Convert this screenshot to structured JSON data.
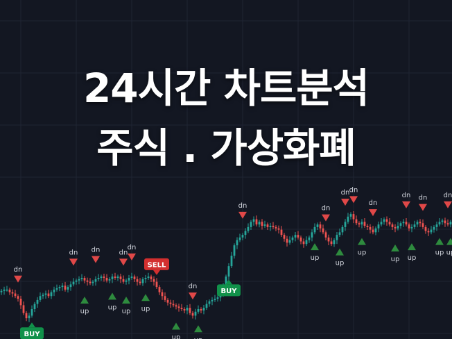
{
  "headline": {
    "line1": "24시간 차트분석",
    "line2": "주식 . 가상화폐"
  },
  "colors": {
    "background": "#131722",
    "grid": "#1f2433",
    "up_candle": "#26a69a",
    "down_candle": "#ef5350",
    "up_marker": "#2e8b3e",
    "down_marker": "#e04848",
    "buy_badge": "#11914a",
    "sell_badge": "#d32f2f",
    "marker_text": "#d1d4dc"
  },
  "chart_data": {
    "type": "candlestick",
    "x": [
      1,
      2,
      3,
      4,
      5,
      6,
      7,
      8,
      9,
      10,
      11,
      12,
      13,
      14,
      15,
      16,
      17,
      18,
      19,
      20,
      21,
      22,
      23,
      24,
      25,
      26,
      27,
      28,
      29,
      30,
      31,
      32,
      33,
      34,
      35,
      36,
      37,
      38,
      39,
      40,
      41,
      42,
      43,
      44,
      45,
      46,
      47,
      48,
      49,
      50,
      51,
      52,
      53,
      54,
      55,
      56,
      57,
      58,
      59,
      60,
      61,
      62,
      63,
      64,
      65,
      66,
      67,
      68,
      69,
      70,
      71,
      72,
      73,
      74,
      75,
      76,
      77,
      78,
      79,
      80,
      81,
      82,
      83,
      84,
      85,
      86,
      87,
      88,
      89,
      90,
      91,
      92,
      93,
      94,
      95,
      96,
      97,
      98,
      99,
      100,
      101,
      102,
      103,
      104,
      105,
      106,
      107,
      108,
      109,
      110,
      111,
      112,
      113,
      114,
      115,
      116,
      117,
      118,
      119,
      120,
      121,
      122,
      123,
      124,
      125,
      126,
      127,
      128,
      129,
      130,
      131,
      132,
      133,
      134,
      135,
      136,
      137,
      138,
      139,
      140,
      141,
      142,
      143,
      144,
      145,
      146,
      147,
      148,
      149,
      150,
      151,
      152,
      153,
      154,
      155,
      156,
      157,
      158,
      159,
      160,
      161,
      162,
      163
    ],
    "close": [
      37,
      38,
      38,
      36,
      35,
      33,
      31,
      26,
      20,
      16,
      18,
      23,
      27,
      30,
      33,
      34,
      35,
      33,
      36,
      38,
      39,
      40,
      41,
      38,
      40,
      42,
      44,
      45,
      46,
      47,
      45,
      44,
      43,
      44,
      46,
      47,
      48,
      47,
      45,
      46,
      48,
      47,
      48,
      46,
      44,
      45,
      47,
      48,
      46,
      44,
      43,
      46,
      47,
      48,
      46,
      44,
      40,
      36,
      33,
      30,
      28,
      27,
      26,
      25,
      24,
      23,
      22,
      24,
      20,
      18,
      21,
      23,
      22,
      24,
      27,
      29,
      30,
      31,
      32,
      34,
      40,
      48,
      56,
      64,
      72,
      76,
      78,
      80,
      83,
      86,
      90,
      92,
      88,
      90,
      87,
      88,
      86,
      87,
      86,
      85,
      84,
      80,
      77,
      74,
      76,
      78,
      80,
      78,
      75,
      73,
      76,
      78,
      82,
      86,
      88,
      85,
      82,
      78,
      75,
      73,
      76,
      80,
      82,
      86,
      90,
      94,
      96,
      92,
      89,
      88,
      90,
      87,
      86,
      84,
      82,
      85,
      88,
      90,
      92,
      90,
      88,
      86,
      85,
      87,
      89,
      90,
      88,
      85,
      86,
      88,
      90,
      89,
      86,
      83,
      82,
      84,
      86,
      88,
      90,
      91,
      89,
      88,
      90
    ],
    "markers": [
      {
        "type": "dn",
        "index": 6
      },
      {
        "type": "buy",
        "index": 11
      },
      {
        "type": "dn",
        "index": 26
      },
      {
        "type": "up",
        "index": 30
      },
      {
        "type": "dn",
        "index": 34
      },
      {
        "type": "up",
        "index": 40
      },
      {
        "type": "dn",
        "index": 44
      },
      {
        "type": "up",
        "index": 45
      },
      {
        "type": "dn",
        "index": 47
      },
      {
        "type": "up",
        "index": 52
      },
      {
        "type": "sell",
        "index": 56
      },
      {
        "type": "up",
        "index": 63
      },
      {
        "type": "dn",
        "index": 69
      },
      {
        "type": "up",
        "index": 71
      },
      {
        "type": "buy",
        "index": 82
      },
      {
        "type": "dn",
        "index": 87
      },
      {
        "type": "up",
        "index": 113
      },
      {
        "type": "dn",
        "index": 117
      },
      {
        "type": "up",
        "index": 122
      },
      {
        "type": "dn",
        "index": 124
      },
      {
        "type": "dn",
        "index": 127
      },
      {
        "type": "up",
        "index": 130
      },
      {
        "type": "dn",
        "index": 134
      },
      {
        "type": "up",
        "index": 142
      },
      {
        "type": "dn",
        "index": 146
      },
      {
        "type": "up",
        "index": 148
      },
      {
        "type": "dn",
        "index": 152
      },
      {
        "type": "up",
        "index": 158
      },
      {
        "type": "dn",
        "index": 161
      },
      {
        "type": "up",
        "index": 162
      }
    ],
    "labels": {
      "up": "up",
      "dn": "dn",
      "buy": "BUY",
      "sell": "SELL"
    }
  }
}
